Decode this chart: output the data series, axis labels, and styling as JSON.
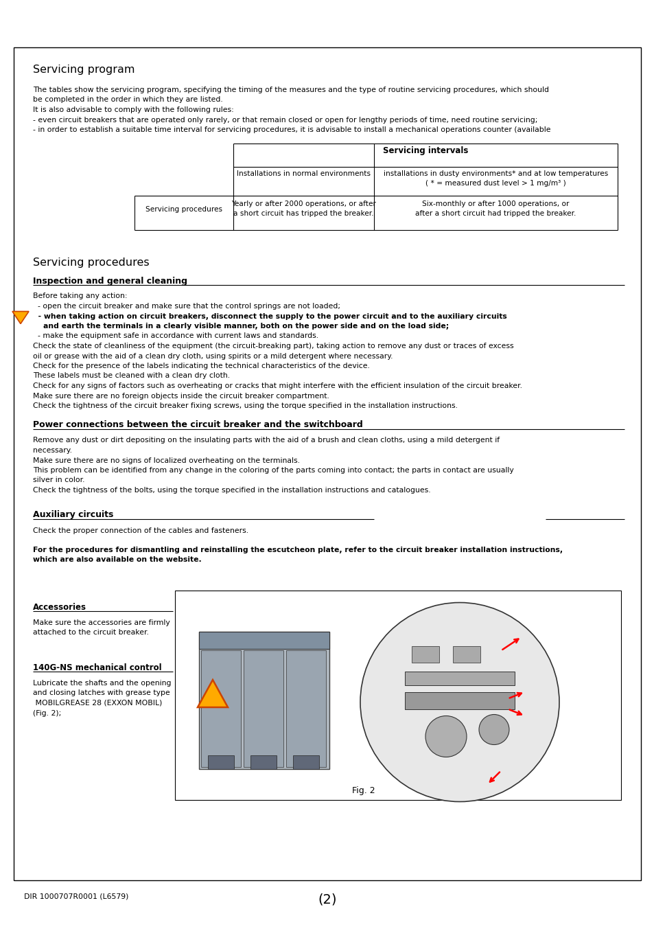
{
  "bg_color": "#ffffff",
  "title1": "Servicing program",
  "intro_lines": [
    "The tables show the servicing program, specifying the timing of the measures and the type of routine servicing procedures, which should",
    "be completed in the order in which they are listed.",
    "It is also advisable to comply with the following rules:",
    "- even circuit breakers that are operated only rarely, or that remain closed or open for lengthy periods of time, need routine servicing;",
    "- in order to establish a suitable time interval for servicing procedures, it is advisable to install a mechanical operations counter (available"
  ],
  "table_header": "Servicing intervals",
  "table_col1_label": "Installations in normal environments",
  "table_col2_label_1": "installations in dusty environments* and at low temperatures",
  "table_col2_label_2": "( * = measured dust level > 1 mg/m³ )",
  "table_row_label": "Servicing procedures",
  "table_row_col1_1": "Yearly or after 2000 operations, or after",
  "table_row_col1_2": "a short circuit has tripped the breaker.",
  "table_row_col2_1": "Six-monthly or after 1000 operations, or",
  "table_row_col2_2": "after a short circuit had tripped the breaker.",
  "title2": "Servicing procedures",
  "sec1_title": "Inspection and general cleaning",
  "sec1_lines": [
    [
      "Before taking any action:",
      false,
      false
    ],
    [
      "  - open the circuit breaker and make sure that the control springs are not loaded;",
      false,
      false
    ],
    [
      "  - when taking action on circuit breakers, disconnect the supply to the power circuit and to the auxiliary circuits",
      true,
      true
    ],
    [
      "    and earth the terminals in a clearly visible manner, both on the power side and on the load side;",
      true,
      false
    ],
    [
      "  - make the equipment safe in accordance with current laws and standards.",
      false,
      false
    ],
    [
      "Check the state of cleanliness of the equipment (the circuit-breaking part), taking action to remove any dust or traces of excess",
      false,
      false
    ],
    [
      "oil or grease with the aid of a clean dry cloth, using spirits or a mild detergent where necessary.",
      false,
      false
    ],
    [
      "Check for the presence of the labels indicating the technical characteristics of the device.",
      false,
      false
    ],
    [
      "These labels must be cleaned with a clean dry cloth.",
      false,
      false
    ],
    [
      "Check for any signs of factors such as overheating or cracks that might interfere with the efficient insulation of the circuit breaker.",
      false,
      false
    ],
    [
      "Make sure there are no foreign objects inside the circuit breaker compartment.",
      false,
      false
    ],
    [
      "Check the tightness of the circuit breaker fixing screws, using the torque specified in the installation instructions.",
      false,
      false
    ]
  ],
  "sec2_title": "Power connections between the circuit breaker and the switchboard",
  "sec2_lines": [
    "Remove any dust or dirt depositing on the insulating parts with the aid of a brush and clean cloths, using a mild detergent if",
    "necessary.",
    "Make sure there are no signs of localized overheating on the terminals.",
    "This problem can be identified from any change in the coloring of the parts coming into contact; the parts in contact are usually",
    "silver in color.",
    "Check the tightness of the bolts, using the torque specified in the installation instructions and catalogues."
  ],
  "sec3_title": "Auxiliary circuits",
  "sec3_lines": [
    "Check the proper connection of the cables and fasteners."
  ],
  "sec3_note_lines": [
    "For the procedures for dismantling and reinstalling the escutcheon plate, refer to the circuit breaker installation instructions,",
    "which are also available on the website."
  ],
  "acc_title": "Accessories",
  "acc_lines": [
    "Make sure the accessories are firmly",
    "attached to the circuit breaker."
  ],
  "mech_title": "140G-NS mechanical control",
  "mech_lines": [
    "Lubricate the shafts and the opening",
    "and closing latches with grease type",
    " MOBILGREASE 28 (EXXON MOBIL)",
    "(Fig. 2);"
  ],
  "fig_label": "Fig. 2",
  "footer_left": "DIR 1000707R0001 (L6579)",
  "footer_center": "(2)"
}
